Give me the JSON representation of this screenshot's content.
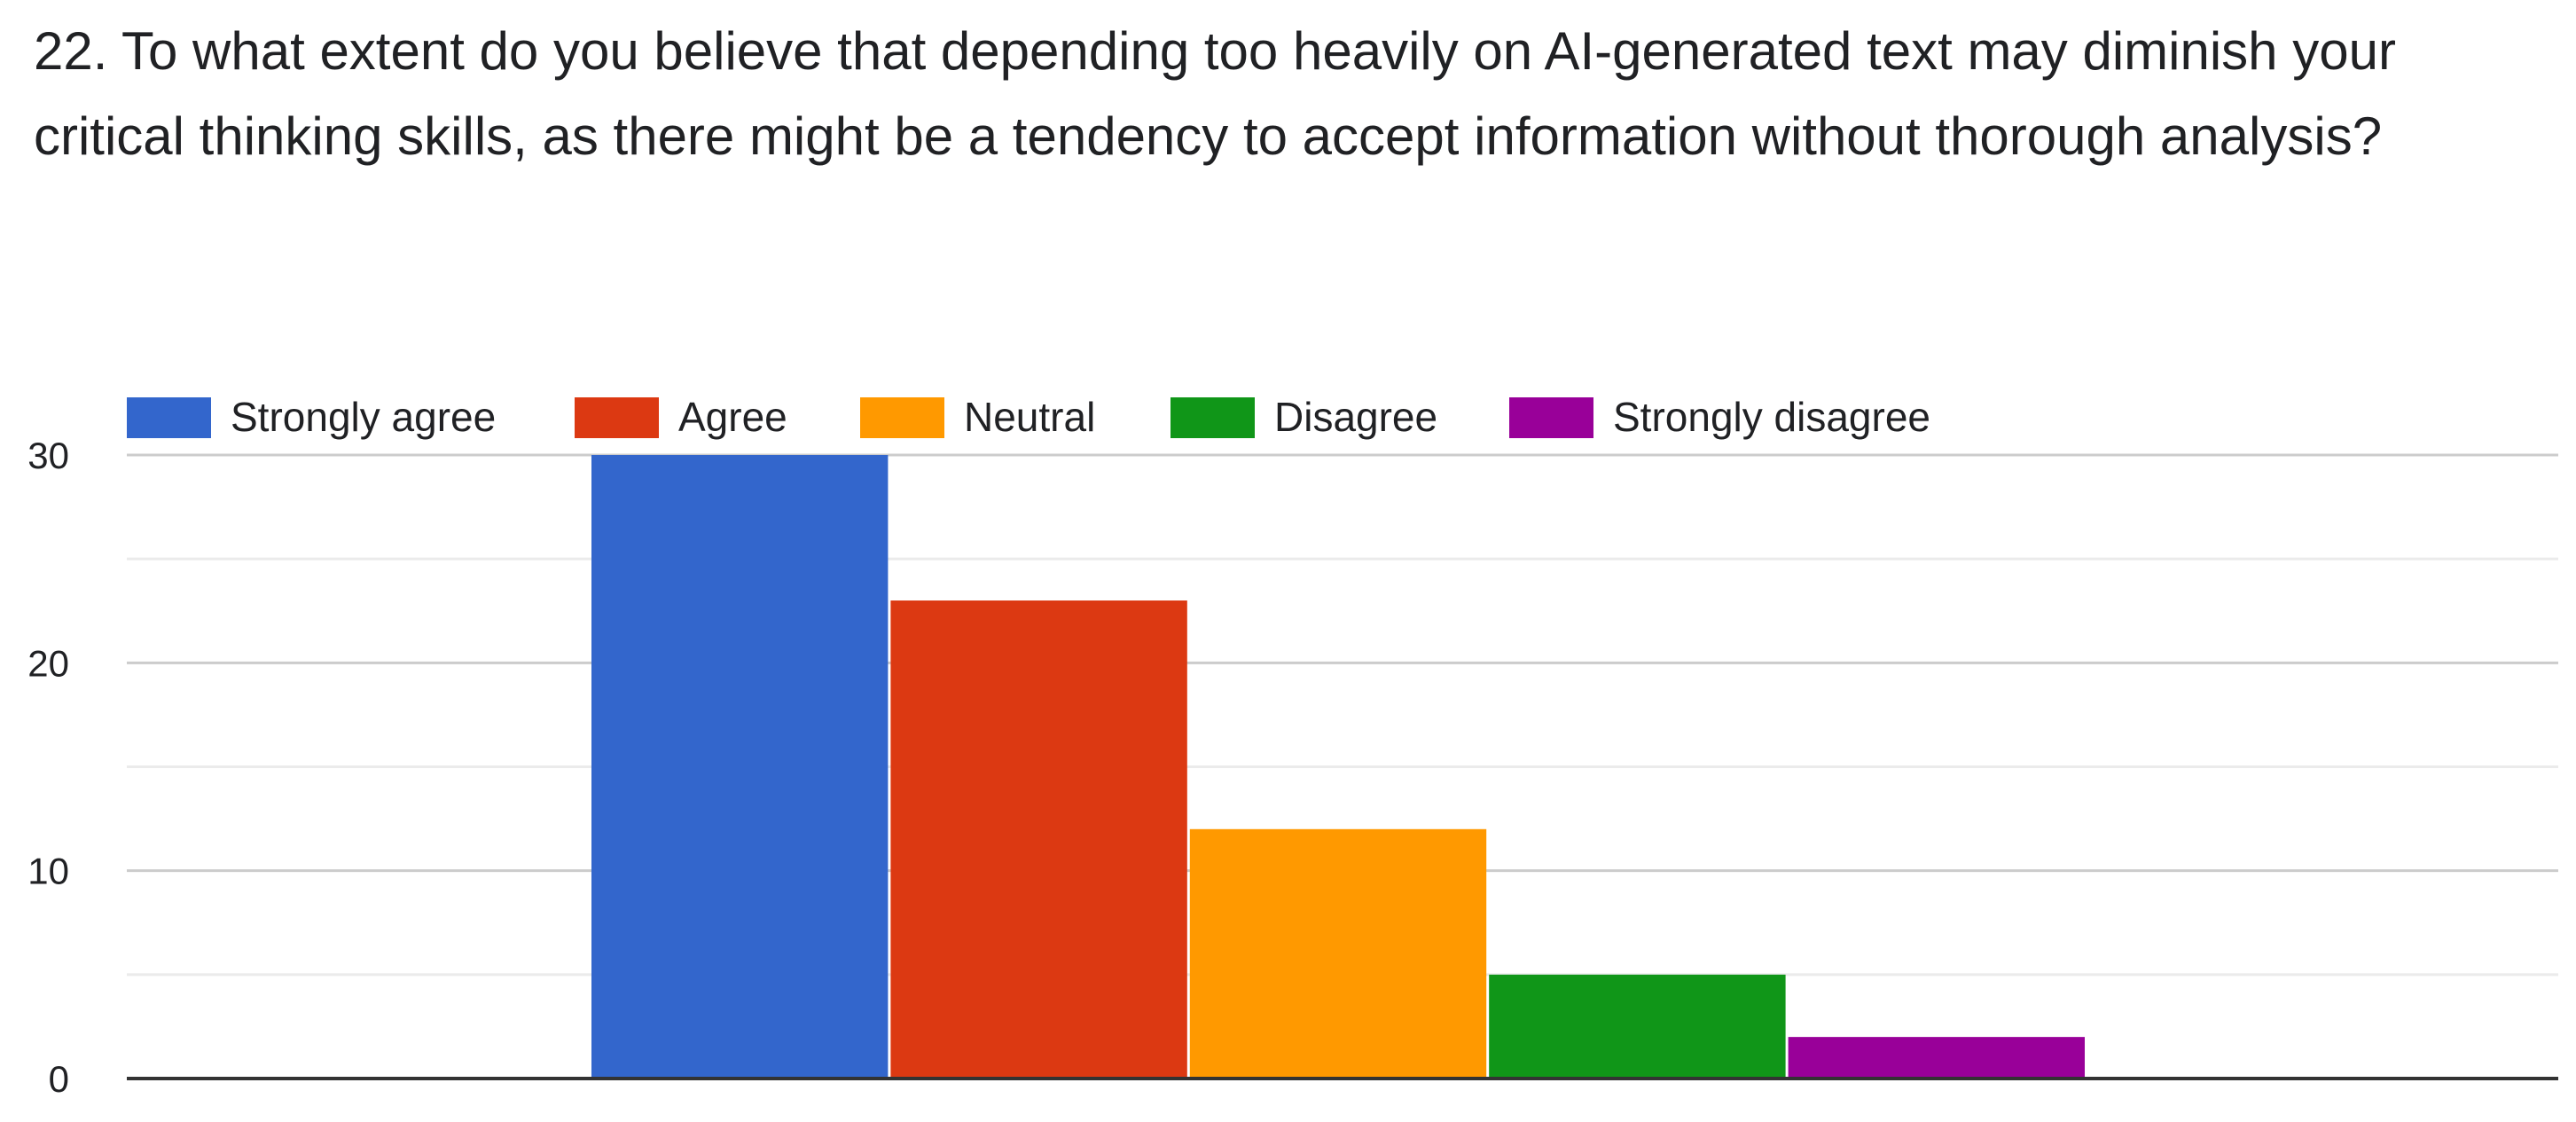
{
  "question": {
    "title": "22. To what extent do you believe that depending too heavily on AI-generated text may diminish your critical thinking skills, as there might be a tendency to accept information without thorough analysis?"
  },
  "chart_data": {
    "type": "bar",
    "title": "22. To what extent do you believe that depending too heavily on AI-generated text may diminish your critical thinking skills, as there might be a tendency to accept information without thorough analysis?",
    "categories": [
      "Strongly agree",
      "Agree",
      "Neutral",
      "Disagree",
      "Strongly disagree"
    ],
    "values": [
      30,
      23,
      12,
      5,
      2
    ],
    "colors": [
      "#3366cc",
      "#dc3912",
      "#ff9900",
      "#109618",
      "#990099"
    ],
    "ylim": [
      0,
      30
    ],
    "yticks": [
      0,
      10,
      20,
      30
    ],
    "minor_gridlines": [
      5,
      15,
      25
    ],
    "grid": true,
    "legend": "top",
    "xlabel": "",
    "ylabel": ""
  }
}
